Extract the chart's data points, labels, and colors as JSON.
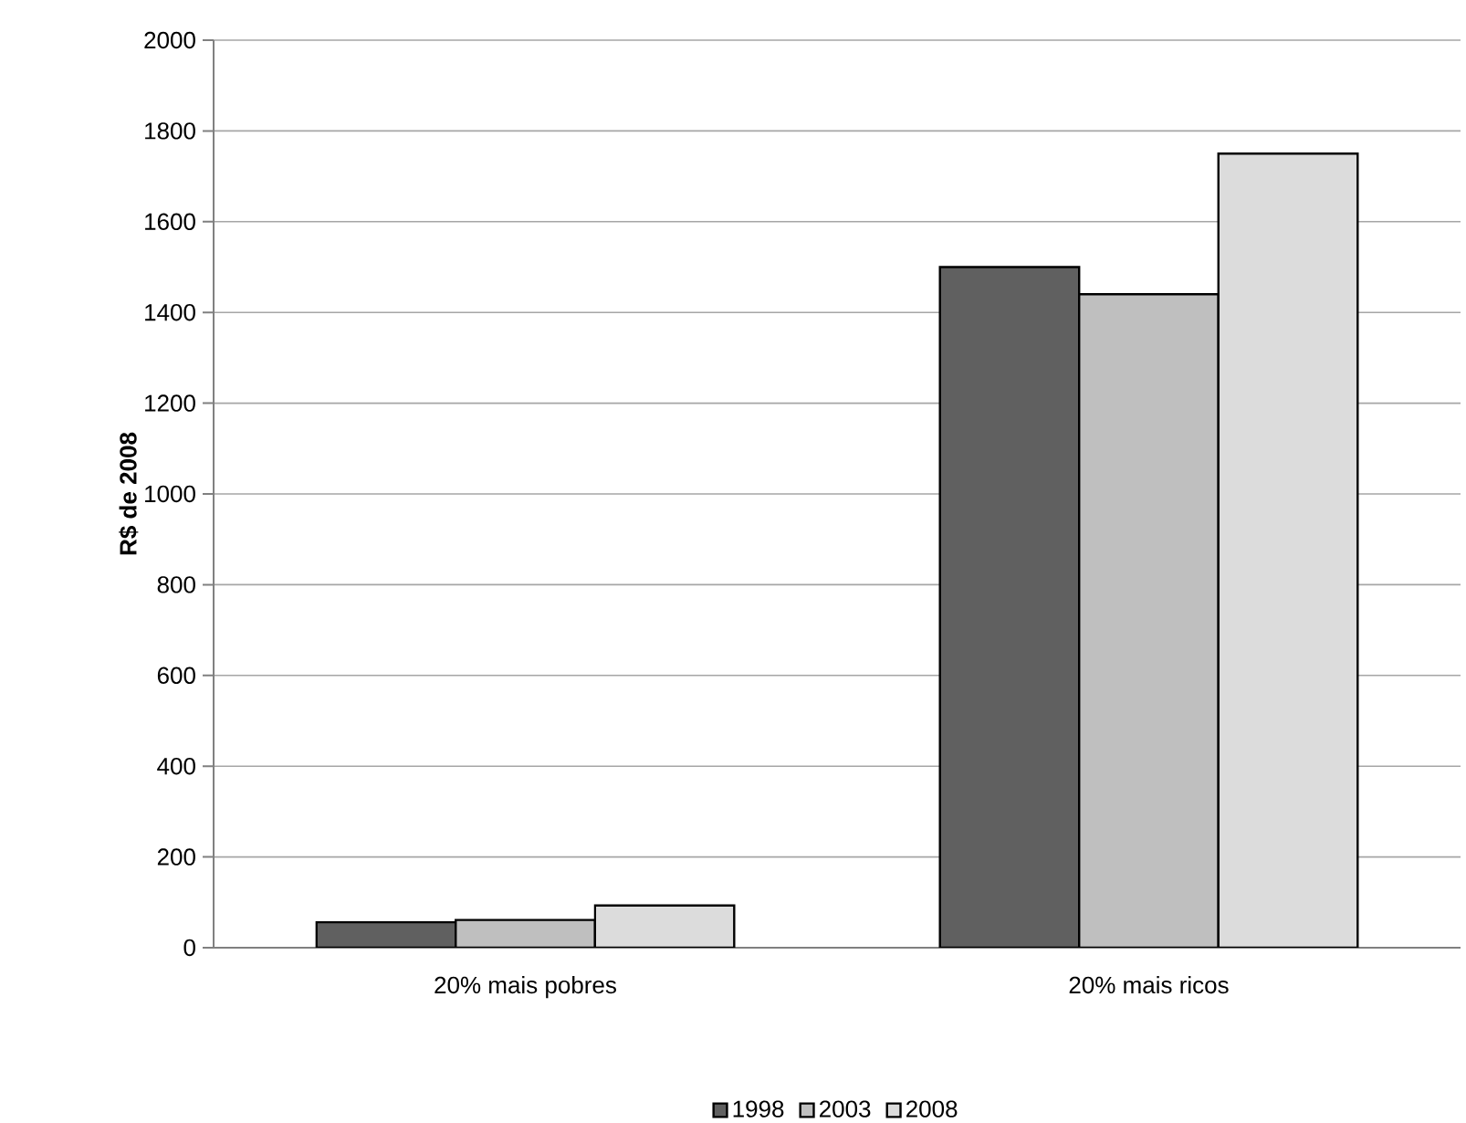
{
  "chart_data": {
    "type": "bar",
    "ylabel": "R$ de 2008",
    "categories": [
      "20% mais pobres",
      "20% mais ricos"
    ],
    "series": [
      {
        "name": "1998",
        "color": "#606060",
        "values": [
          56,
          1500
        ]
      },
      {
        "name": "2003",
        "color": "#bfbfbf",
        "values": [
          61,
          1440
        ]
      },
      {
        "name": "2008",
        "color": "#dcdcdc",
        "values": [
          93,
          1750
        ]
      }
    ],
    "ylim": [
      0,
      2000
    ],
    "yticks": [
      0,
      200,
      400,
      600,
      800,
      1000,
      1200,
      1400,
      1600,
      1800,
      2000
    ],
    "grid": "y",
    "legend": "bottom"
  }
}
